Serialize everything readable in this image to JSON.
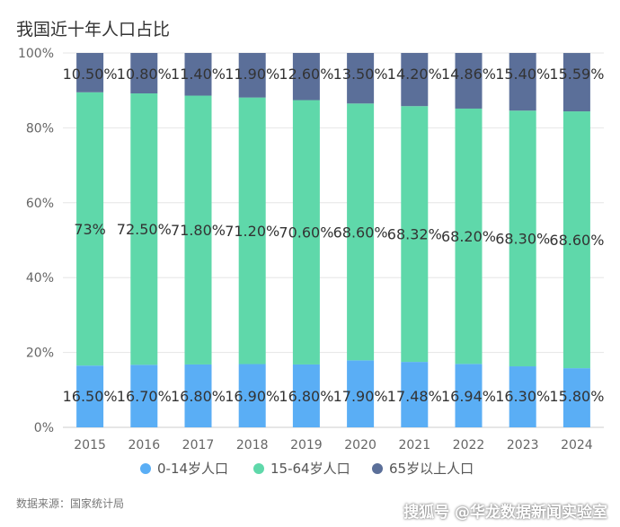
{
  "chart_data": {
    "type": "bar",
    "stacked": true,
    "title": "我国近十年人口占比",
    "categories": [
      "2015",
      "2016",
      "2017",
      "2018",
      "2019",
      "2020",
      "2021",
      "2022",
      "2023",
      "2024"
    ],
    "series": [
      {
        "name": "0-14岁人口",
        "values": [
          16.5,
          16.7,
          16.8,
          16.9,
          16.8,
          17.9,
          17.48,
          16.94,
          16.3,
          15.8
        ],
        "labels": [
          "16.50%",
          "16.70%",
          "16.80%",
          "16.90%",
          "16.80%",
          "17.90%",
          "17.48%",
          "16.94%",
          "16.30%",
          "15.80%"
        ],
        "color": "#5aaef5"
      },
      {
        "name": "15-64岁人口",
        "values": [
          73,
          72.5,
          71.8,
          71.2,
          70.6,
          68.6,
          68.32,
          68.2,
          68.3,
          68.6
        ],
        "labels": [
          "73%",
          "72.50%",
          "71.80%",
          "71.20%",
          "70.60%",
          "68.60%",
          "68.32%",
          "68.20%",
          "68.30%",
          "68.60%"
        ],
        "color": "#5fd8aa"
      },
      {
        "name": "65岁以上人口",
        "values": [
          10.5,
          10.8,
          11.4,
          11.9,
          12.6,
          13.5,
          14.2,
          14.86,
          15.4,
          15.59
        ],
        "labels": [
          "10.50%",
          "10.80%",
          "11.40%",
          "11.90%",
          "12.60%",
          "13.50%",
          "14.20%",
          "14.86%",
          "15.40%",
          "15.59%"
        ],
        "color": "#5b6f99"
      }
    ],
    "ylim": [
      0,
      100
    ],
    "yticks": [
      "0%",
      "20%",
      "40%",
      "60%",
      "80%",
      "100%"
    ],
    "grid": true,
    "legend_position": "bottom"
  },
  "footer": {
    "source": "数据来源：国家统计局",
    "watermark": "搜狐号 @华龙数据新闻实验室"
  }
}
